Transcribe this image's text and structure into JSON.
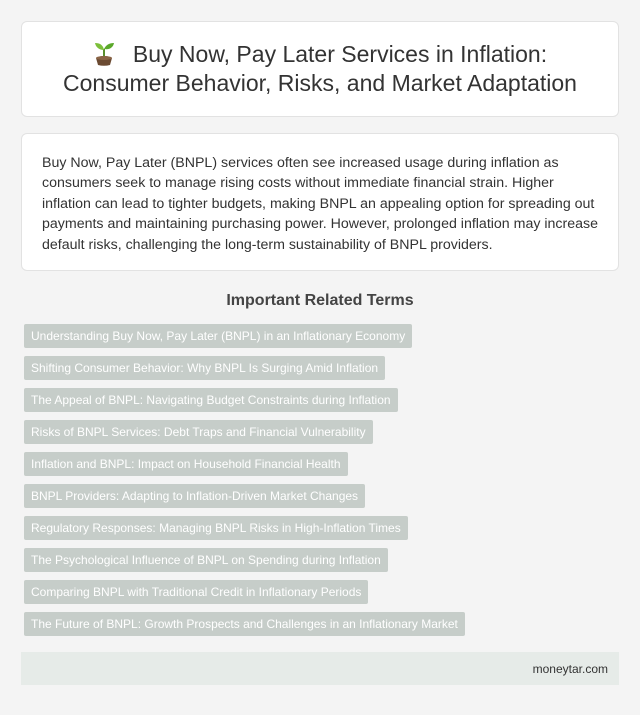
{
  "header": {
    "icon": "sprout-icon",
    "title": "Buy Now, Pay Later Services in Inflation: Consumer Behavior, Risks, and Market Adaptation"
  },
  "description": "Buy Now, Pay Later (BNPL) services often see increased usage during inflation as consumers seek to manage rising costs without immediate financial strain. Higher inflation can lead to tighter budgets, making BNPL an appealing option for spreading out payments and maintaining purchasing power. However, prolonged inflation may increase default risks, challenging the long-term sustainability of BNPL providers.",
  "related": {
    "heading": "Important Related Terms",
    "terms": [
      "Understanding Buy Now, Pay Later (BNPL) in an Inflationary Economy",
      "Shifting Consumer Behavior: Why BNPL Is Surging Amid Inflation",
      "The Appeal of BNPL: Navigating Budget Constraints during Inflation",
      "Risks of BNPL Services: Debt Traps and Financial Vulnerability",
      "Inflation and BNPL: Impact on Household Financial Health",
      "BNPL Providers: Adapting to Inflation-Driven Market Changes",
      "Regulatory Responses: Managing BNPL Risks in High-Inflation Times",
      "The Psychological Influence of BNPL on Spending during Inflation",
      "Comparing BNPL with Traditional Credit in Inflationary Periods",
      "The Future of BNPL: Growth Prospects and Challenges in an Inflationary Market"
    ]
  },
  "footer": {
    "site": "moneytar.com"
  },
  "colors": {
    "page_background": "#f4f4f4",
    "card_background": "#ffffff",
    "tag_background": "#c6cdc9",
    "footer_background": "#e6ebe8"
  }
}
